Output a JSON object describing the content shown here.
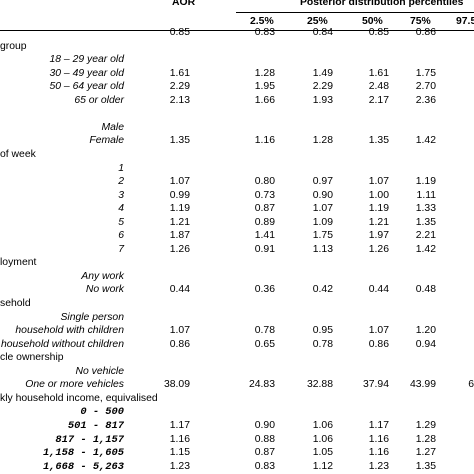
{
  "header": {
    "aor": "AOR",
    "posterior_title": "Posterior distribution percentiles",
    "percentiles": [
      "2.5%",
      "25%",
      "50%",
      "75%",
      "97.5"
    ]
  },
  "rows": [
    {
      "kind": "values",
      "label": "",
      "values": [
        "0.85",
        "0.83",
        "0.84",
        "0.85",
        "0.86"
      ]
    },
    {
      "kind": "group",
      "label": "group"
    },
    {
      "kind": "sub",
      "label": "18 – 29 year old",
      "values": [
        "",
        "",
        "",
        "",
        ""
      ]
    },
    {
      "kind": "sub",
      "label": "30 – 49 year old",
      "values": [
        "1.61",
        "1.28",
        "1.49",
        "1.61",
        "1.75"
      ]
    },
    {
      "kind": "sub",
      "label": "50 – 64 year old",
      "values": [
        "2.29",
        "1.95",
        "2.29",
        "2.48",
        "2.70"
      ]
    },
    {
      "kind": "sub",
      "label": "65 or older",
      "values": [
        "2.13",
        "1.66",
        "1.93",
        "2.17",
        "2.36"
      ]
    },
    {
      "kind": "blank"
    },
    {
      "kind": "sub",
      "label": "Male",
      "values": [
        "",
        "",
        "",
        "",
        ""
      ]
    },
    {
      "kind": "sub",
      "label": "Female",
      "values": [
        "1.35",
        "1.16",
        "1.28",
        "1.35",
        "1.42"
      ]
    },
    {
      "kind": "group",
      "label": "of week"
    },
    {
      "kind": "sub",
      "label": "1",
      "values": [
        "",
        "",
        "",
        "",
        ""
      ]
    },
    {
      "kind": "sub",
      "label": "2",
      "values": [
        "1.07",
        "0.80",
        "0.97",
        "1.07",
        "1.19"
      ]
    },
    {
      "kind": "sub",
      "label": "3",
      "values": [
        "0.99",
        "0.73",
        "0.90",
        "1.00",
        "1.11"
      ]
    },
    {
      "kind": "sub",
      "label": "4",
      "values": [
        "1.19",
        "0.87",
        "1.07",
        "1.19",
        "1.33"
      ]
    },
    {
      "kind": "sub",
      "label": "5",
      "values": [
        "1.21",
        "0.89",
        "1.09",
        "1.21",
        "1.35"
      ]
    },
    {
      "kind": "sub",
      "label": "6",
      "values": [
        "1.87",
        "1.41",
        "1.75",
        "1.97",
        "2.21"
      ]
    },
    {
      "kind": "sub",
      "label": "7",
      "values": [
        "1.26",
        "0.91",
        "1.13",
        "1.26",
        "1.42"
      ]
    },
    {
      "kind": "group",
      "label": "loyment"
    },
    {
      "kind": "sub",
      "label": "Any work",
      "values": [
        "",
        "",
        "",
        "",
        ""
      ]
    },
    {
      "kind": "sub",
      "label": "No work",
      "values": [
        "0.44",
        "0.36",
        "0.42",
        "0.44",
        "0.48"
      ]
    },
    {
      "kind": "group",
      "label": "sehold"
    },
    {
      "kind": "sub",
      "label": "Single person",
      "values": [
        "",
        "",
        "",
        "",
        ""
      ]
    },
    {
      "kind": "sub",
      "label": "household with children",
      "values": [
        "1.07",
        "0.78",
        "0.95",
        "1.07",
        "1.20"
      ]
    },
    {
      "kind": "sub",
      "label": "household without children",
      "values": [
        "0.86",
        "0.65",
        "0.78",
        "0.86",
        "0.94"
      ]
    },
    {
      "kind": "group",
      "label": "cle ownership"
    },
    {
      "kind": "sub",
      "label": "No vehicle",
      "values": [
        "",
        "",
        "",
        "",
        ""
      ]
    },
    {
      "kind": "sub",
      "label": "One or more vehicles",
      "values": [
        "38.09",
        "24.83",
        "32.88",
        "37.94",
        "43.99",
        "6"
      ]
    },
    {
      "kind": "group",
      "label": "kly household income, equivalised"
    },
    {
      "kind": "mono",
      "label": "0  -   500",
      "values": [
        "",
        "",
        "",
        "",
        ""
      ]
    },
    {
      "kind": "mono",
      "label": "501  -   817",
      "values": [
        "1.17",
        "0.90",
        "1.06",
        "1.17",
        "1.29"
      ]
    },
    {
      "kind": "mono",
      "label": "817  - 1,157",
      "values": [
        "1.16",
        "0.88",
        "1.06",
        "1.16",
        "1.28"
      ]
    },
    {
      "kind": "mono",
      "label": "1,158  - 1,605",
      "values": [
        "1.15",
        "0.87",
        "1.05",
        "1.16",
        "1.27"
      ]
    },
    {
      "kind": "mono",
      "label": "1,668  - 5,263",
      "values": [
        "1.23",
        "0.83",
        "1.12",
        "1.23",
        "1.35"
      ]
    }
  ]
}
